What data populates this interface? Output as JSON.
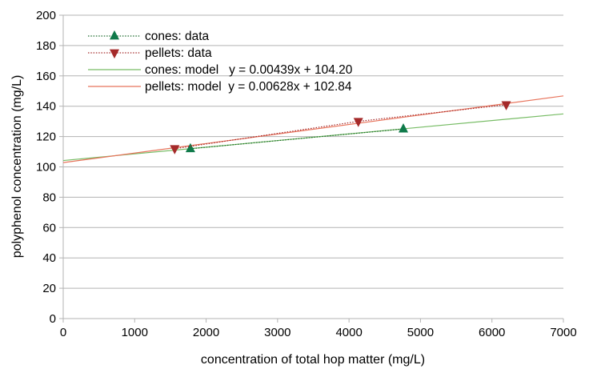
{
  "chart_data": {
    "type": "scatter",
    "title": "",
    "xlabel": "concentration of total hop matter (mg/L)",
    "ylabel": "polyphenol concentration (mg/L)",
    "xlim": [
      0,
      7000
    ],
    "ylim": [
      0,
      200
    ],
    "xticks": [
      0,
      1000,
      2000,
      3000,
      4000,
      5000,
      6000,
      7000
    ],
    "yticks": [
      0,
      20,
      40,
      60,
      80,
      100,
      120,
      140,
      160,
      180,
      200
    ],
    "grid": "horizontal",
    "legend_position": "top-left",
    "series": [
      {
        "name": "cones: data",
        "kind": "data",
        "marker": "triangle-up",
        "color": "#0f7a4a",
        "line_color": "#1d6b2e",
        "line_style": "dotted",
        "x": [
          1780,
          4760
        ],
        "y": [
          112,
          125
        ]
      },
      {
        "name": "pellets: data",
        "kind": "data",
        "marker": "triangle-down",
        "color": "#a52a2a",
        "line_color": "#a52a2a",
        "line_style": "dotted",
        "x": [
          1560,
          4130,
          6200
        ],
        "y": [
          112,
          130,
          141
        ]
      },
      {
        "name": "cones: model   y = 0.00439x + 104.20",
        "kind": "model",
        "color": "#77bc65",
        "slope": 0.00439,
        "intercept": 104.2,
        "x": [
          0,
          7000
        ]
      },
      {
        "name": "pellets: model  y = 0.00628x + 102.84",
        "kind": "model",
        "color": "#e8745c",
        "slope": 0.00628,
        "intercept": 102.84,
        "x": [
          0,
          7000
        ]
      }
    ]
  }
}
